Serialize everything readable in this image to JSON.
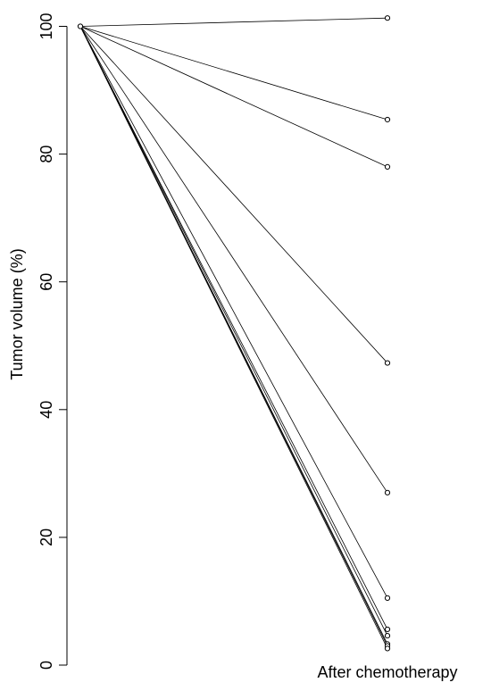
{
  "chart_data": {
    "type": "line",
    "title": "",
    "xlabel": "After chemotherapy",
    "ylabel": "Tumor volume (%)",
    "ylim": [
      0,
      100
    ],
    "yticks": [
      0,
      20,
      40,
      60,
      80,
      100
    ],
    "grid": false,
    "baseline": 100,
    "series": [
      {
        "values": [
          100,
          101.3
        ]
      },
      {
        "values": [
          100,
          85.4
        ]
      },
      {
        "values": [
          100,
          78.0
        ]
      },
      {
        "values": [
          100,
          47.3
        ]
      },
      {
        "values": [
          100,
          27.0
        ]
      },
      {
        "values": [
          100,
          10.5
        ]
      },
      {
        "values": [
          100,
          5.6
        ]
      },
      {
        "values": [
          100,
          4.6
        ]
      },
      {
        "values": [
          100,
          3.3
        ]
      },
      {
        "values": [
          100,
          3.0
        ]
      },
      {
        "values": [
          100,
          2.6
        ]
      }
    ]
  }
}
